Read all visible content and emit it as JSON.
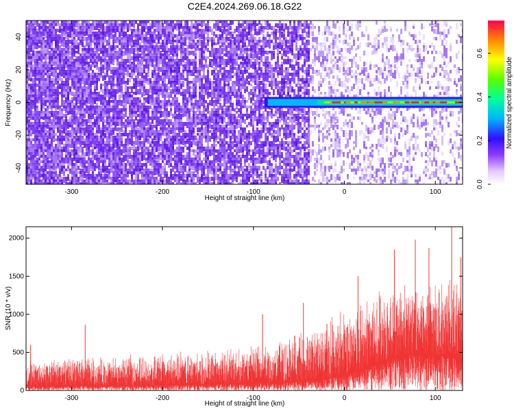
{
  "title": "C2E4.2024.269.06.18.G22",
  "colors": {
    "snr_series": "#f03434",
    "background": "#ffffff"
  },
  "chart_data": [
    {
      "type": "heatmap",
      "xlabel": "Height of straight line (km)",
      "ylabel": "Frequency (Hz)",
      "xlim": [
        -350,
        130
      ],
      "ylim": [
        -50,
        50
      ],
      "xticks": [
        -300,
        -200,
        -100,
        0,
        100
      ],
      "yticks": [
        -40,
        -20,
        0,
        20,
        40
      ],
      "colorbar": {
        "label": "Normalized spectral amplitude",
        "range": [
          0,
          0.75
        ],
        "ticks": [
          0.0,
          0.2,
          0.4,
          0.6
        ],
        "tick_labels": [
          "0.0",
          "0.2",
          "0.4",
          "0.6"
        ]
      },
      "signal_band": {
        "x_start": -88,
        "x_end": 130,
        "frequency_center": 0,
        "peak_amplitude": 0.75
      },
      "noise": {
        "dense_until_x": -40,
        "sparse_after_x": -40
      }
    },
    {
      "type": "area",
      "xlabel": "Height of straight line (km)",
      "ylabel": "SNR (10 * v/v)",
      "xlim": [
        -350,
        130
      ],
      "ylim": [
        0,
        2150
      ],
      "xticks": [
        -300,
        -200,
        -100,
        0,
        100
      ],
      "yticks": [
        0,
        500,
        1000,
        1500,
        2000
      ],
      "envelope": {
        "x": [
          -350,
          -300,
          -250,
          -200,
          -150,
          -100,
          -50,
          -25,
          0,
          25,
          50,
          75,
          100,
          130
        ],
        "upper": [
          420,
          460,
          470,
          520,
          560,
          620,
          800,
          950,
          1150,
          1350,
          1450,
          1500,
          1550,
          1500
        ],
        "lower": [
          50,
          60,
          60,
          70,
          80,
          90,
          120,
          150,
          200,
          300,
          420,
          480,
          460,
          420
        ]
      },
      "peaks": [
        {
          "x": -345,
          "y": 600
        },
        {
          "x": -285,
          "y": 860
        },
        {
          "x": -90,
          "y": 1000
        },
        {
          "x": -45,
          "y": 1150
        },
        {
          "x": 15,
          "y": 1500
        },
        {
          "x": 55,
          "y": 1850
        },
        {
          "x": 78,
          "y": 1980
        },
        {
          "x": 93,
          "y": 1870
        },
        {
          "x": 118,
          "y": 2150
        },
        {
          "x": 128,
          "y": 1750
        }
      ]
    }
  ]
}
